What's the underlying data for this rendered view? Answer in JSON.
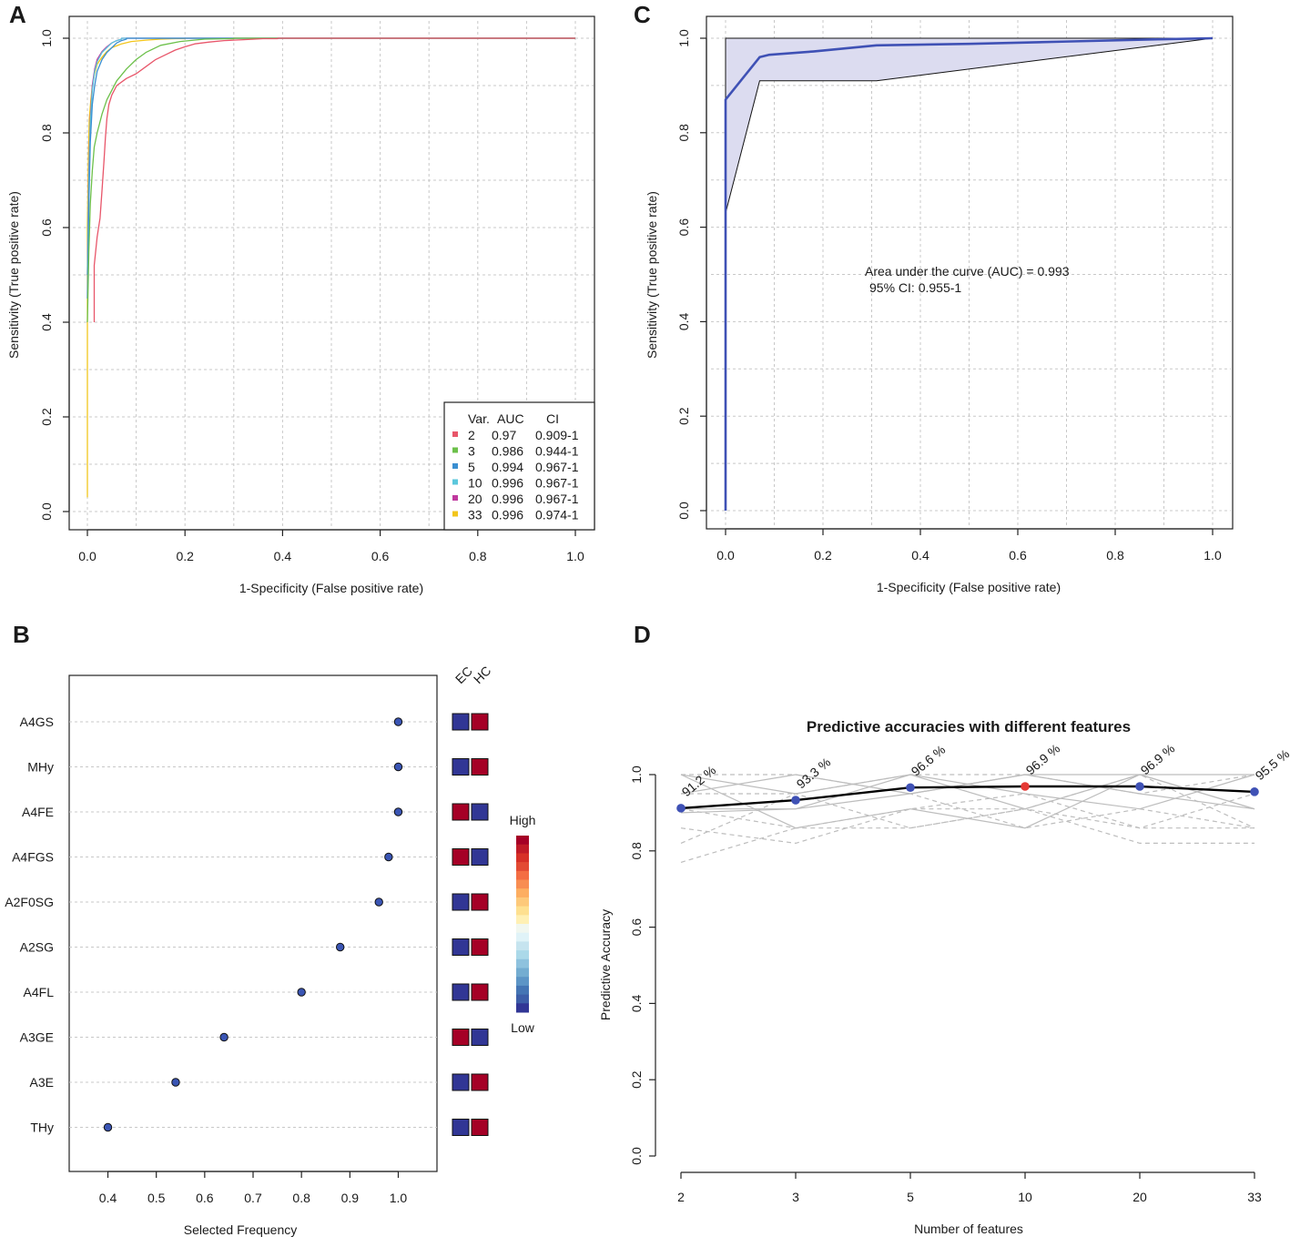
{
  "panels": {
    "A": {
      "letter": "A",
      "xlabel": "1-Specificity (False positive rate)",
      "ylabel": "Sensitivity (True positive rate)",
      "xticks": [
        "0.0",
        "0.2",
        "0.4",
        "0.6",
        "0.8",
        "1.0"
      ],
      "yticks": [
        "0.0",
        "0.2",
        "0.4",
        "0.6",
        "0.8",
        "1.0"
      ],
      "legend_header": {
        "var": "Var.",
        "auc": "AUC",
        "ci": "CI"
      },
      "legend": [
        {
          "var": "2",
          "auc": "0.97",
          "ci": "0.909-1",
          "color": "#e8566a"
        },
        {
          "var": "3",
          "auc": "0.986",
          "ci": "0.944-1",
          "color": "#6cc04a"
        },
        {
          "var": "5",
          "auc": "0.994",
          "ci": "0.967-1",
          "color": "#3b8fd1"
        },
        {
          "var": "10",
          "auc": "0.996",
          "ci": "0.967-1",
          "color": "#5bc7dc"
        },
        {
          "var": "20",
          "auc": "0.996",
          "ci": "0.967-1",
          "color": "#c0399e"
        },
        {
          "var": "33",
          "auc": "0.996",
          "ci": "0.974-1",
          "color": "#f2c51c"
        }
      ]
    },
    "B": {
      "letter": "B",
      "xlabel": "Selected Frequency",
      "xticks": [
        "0.4",
        "0.5",
        "0.6",
        "0.7",
        "0.8",
        "0.9",
        "1.0"
      ],
      "col_headers": [
        "EC",
        "HC"
      ],
      "scale_high": "High",
      "scale_low": "Low",
      "colors": {
        "low": "#313695",
        "high": "#a50026",
        "dot": "#3a55b4"
      }
    },
    "C": {
      "letter": "C",
      "xlabel": "1-Specificity (False positive rate)",
      "ylabel": "Sensitivity (True positive rate)",
      "xticks": [
        "0.0",
        "0.2",
        "0.4",
        "0.6",
        "0.8",
        "1.0"
      ],
      "yticks": [
        "0.0",
        "0.2",
        "0.4",
        "0.6",
        "0.8",
        "1.0"
      ],
      "auc_text": "Area under the curve (AUC) = 0.993",
      "ci_text": "95% CI: 0.955-1",
      "colors": {
        "curve": "#3f51b5",
        "band": "#dcdcf0"
      }
    },
    "D": {
      "letter": "D",
      "title": "Predictive accuracies with different features",
      "xlabel": "Number of features",
      "ylabel": "Predictive Accuracy",
      "yticks": [
        "0.0",
        "0.2",
        "0.4",
        "0.6",
        "0.8",
        "1.0"
      ],
      "colors": {
        "line": "#000000",
        "point": "#3f51b5",
        "best": "#e53935",
        "bg_lines": "#bdbdbd"
      }
    }
  },
  "chart_data": [
    {
      "id": "A",
      "type": "line",
      "title": "",
      "xlabel": "1-Specificity (False positive rate)",
      "ylabel": "Sensitivity (True positive rate)",
      "xlim": [
        0,
        1
      ],
      "ylim": [
        0,
        1
      ],
      "grid": true,
      "legend_position": "bottom-right",
      "series": [
        {
          "name": "2",
          "auc": 0.97,
          "ci": "0.909-1",
          "x": [
            0.014,
            0.014,
            0.02,
            0.026,
            0.03,
            0.034,
            0.037,
            0.04,
            0.044,
            0.05,
            0.06,
            0.08,
            0.1,
            0.12,
            0.14,
            0.16,
            0.18,
            0.2,
            0.22,
            0.25,
            0.28,
            0.32,
            0.36,
            0.39,
            0.39,
            1.0
          ],
          "y": [
            0.4,
            0.52,
            0.58,
            0.62,
            0.68,
            0.74,
            0.79,
            0.83,
            0.86,
            0.88,
            0.9,
            0.915,
            0.925,
            0.94,
            0.955,
            0.965,
            0.975,
            0.982,
            0.988,
            0.992,
            0.995,
            0.997,
            0.999,
            0.999,
            1.0,
            1.0
          ]
        },
        {
          "name": "3",
          "auc": 0.986,
          "ci": "0.944-1",
          "x": [
            0.0,
            0.003,
            0.006,
            0.01,
            0.014,
            0.02,
            0.03,
            0.04,
            0.05,
            0.06,
            0.08,
            0.1,
            0.12,
            0.15,
            0.19,
            0.24,
            0.3,
            0.3,
            1.0
          ],
          "y": [
            0.4,
            0.55,
            0.65,
            0.72,
            0.77,
            0.8,
            0.84,
            0.87,
            0.89,
            0.91,
            0.935,
            0.955,
            0.97,
            0.985,
            0.993,
            0.998,
            0.999,
            1.0,
            1.0
          ]
        },
        {
          "name": "5",
          "auc": 0.994,
          "ci": "0.967-1",
          "x": [
            0.0,
            0.003,
            0.006,
            0.01,
            0.015,
            0.02,
            0.03,
            0.04,
            0.05,
            0.06,
            0.07,
            0.08,
            0.08,
            1.0
          ],
          "y": [
            0.45,
            0.65,
            0.78,
            0.86,
            0.9,
            0.93,
            0.955,
            0.97,
            0.98,
            0.99,
            0.995,
            0.998,
            1.0,
            1.0
          ]
        },
        {
          "name": "10",
          "auc": 0.996,
          "ci": "0.967-1",
          "x": [
            0.0,
            0.003,
            0.006,
            0.01,
            0.015,
            0.02,
            0.03,
            0.04,
            0.05,
            0.06,
            0.07,
            0.07,
            1.0
          ],
          "y": [
            0.5,
            0.7,
            0.82,
            0.89,
            0.93,
            0.95,
            0.97,
            0.98,
            0.99,
            0.995,
            0.998,
            1.0,
            1.0
          ]
        },
        {
          "name": "20",
          "auc": 0.996,
          "ci": "0.967-1",
          "x": [
            0.0,
            0.003,
            0.006,
            0.01,
            0.015,
            0.02,
            0.03,
            0.04,
            0.05,
            0.06,
            0.07,
            0.07,
            1.0
          ],
          "y": [
            0.5,
            0.72,
            0.83,
            0.9,
            0.935,
            0.955,
            0.972,
            0.982,
            0.99,
            0.995,
            0.998,
            1.0,
            1.0
          ]
        },
        {
          "name": "33",
          "auc": 0.996,
          "ci": "0.974-1",
          "x": [
            0.0,
            0.0,
            0.002,
            0.004,
            0.007,
            0.01,
            0.015,
            0.02,
            0.03,
            0.04,
            0.05,
            0.07,
            0.09,
            0.12,
            0.15,
            0.18,
            0.2,
            0.2,
            1.0
          ],
          "y": [
            0.03,
            0.6,
            0.75,
            0.83,
            0.87,
            0.9,
            0.925,
            0.945,
            0.96,
            0.972,
            0.98,
            0.988,
            0.993,
            0.996,
            0.998,
            0.999,
            0.999,
            1.0,
            1.0
          ]
        }
      ]
    },
    {
      "id": "B",
      "type": "scatter",
      "title": "",
      "xlabel": "Selected Frequency",
      "ylabel": "",
      "xlim": [
        0.32,
        1.08
      ],
      "features": [
        "A4GS",
        "MHy",
        "A4FE",
        "A4FGS",
        "A2F0SG",
        "A2SG",
        "A4FL",
        "A3GE",
        "A3E",
        "THy"
      ],
      "values": [
        1.0,
        1.0,
        1.0,
        0.98,
        0.96,
        0.88,
        0.8,
        0.64,
        0.54,
        0.4
      ],
      "ec_level": [
        "low",
        "low",
        "high",
        "high",
        "low",
        "low",
        "low",
        "high",
        "low",
        "low"
      ],
      "hc_level": [
        "high",
        "high",
        "low",
        "low",
        "high",
        "high",
        "high",
        "low",
        "high",
        "high"
      ]
    },
    {
      "id": "C",
      "type": "line",
      "title": "",
      "xlabel": "1-Specificity (False positive rate)",
      "ylabel": "Sensitivity (True positive rate)",
      "xlim": [
        0,
        1
      ],
      "ylim": [
        0,
        1
      ],
      "grid": true,
      "auc": 0.993,
      "ci": "0.955-1",
      "series": [
        {
          "name": "ROC",
          "x": [
            0.0,
            0.0,
            0.0,
            0.07,
            0.09,
            0.18,
            0.31,
            0.5,
            0.7,
            0.9,
            1.0
          ],
          "y": [
            0.0,
            0.7,
            0.87,
            0.96,
            0.965,
            0.972,
            0.985,
            0.988,
            0.993,
            0.998,
            1.0
          ]
        },
        {
          "name": "CI upper",
          "x": [
            0.0,
            0.0,
            1.0
          ],
          "y": [
            0.0,
            1.0,
            1.0
          ]
        },
        {
          "name": "CI lower",
          "x": [
            0.0,
            0.0,
            0.07,
            0.31,
            1.0
          ],
          "y": [
            0.0,
            0.63,
            0.91,
            0.91,
            1.0
          ]
        }
      ]
    },
    {
      "id": "D",
      "type": "line",
      "title": "Predictive accuracies with different features",
      "xlabel": "Number of features",
      "ylabel": "Predictive Accuracy",
      "ylim": [
        0,
        1
      ],
      "categories": [
        "2",
        "3",
        "5",
        "10",
        "20",
        "33"
      ],
      "values": [
        0.912,
        0.933,
        0.966,
        0.969,
        0.969,
        0.955
      ],
      "labels": [
        "91.2 %",
        "93.3 %",
        "96.6 %",
        "96.9 %",
        "96.9 %",
        "95.5 %"
      ],
      "best_index": 3,
      "fold_solid": [
        [
          1.0,
          0.86,
          0.91,
          0.86,
          1.0,
          0.91
        ],
        [
          0.9,
          0.91,
          1.0,
          0.95,
          0.91,
          1.0
        ],
        [
          0.95,
          1.0,
          0.95,
          1.0,
          0.95,
          0.91
        ],
        [
          1.0,
          0.95,
          1.0,
          0.91,
          1.0,
          1.0
        ],
        [
          0.91,
          0.91,
          0.95,
          1.0,
          1.0,
          0.91
        ]
      ],
      "fold_dashed": [
        [
          0.77,
          0.86,
          0.91,
          0.95,
          0.86,
          0.95
        ],
        [
          0.82,
          0.95,
          0.86,
          0.91,
          1.0,
          0.86
        ],
        [
          0.86,
          0.82,
          0.91,
          0.91,
          0.82,
          0.82
        ],
        [
          0.95,
          0.95,
          1.0,
          1.0,
          0.95,
          1.0
        ],
        [
          1.0,
          1.0,
          0.95,
          0.86,
          0.91,
          0.86
        ],
        [
          0.91,
          0.86,
          0.86,
          0.91,
          0.86,
          0.86
        ]
      ]
    }
  ]
}
